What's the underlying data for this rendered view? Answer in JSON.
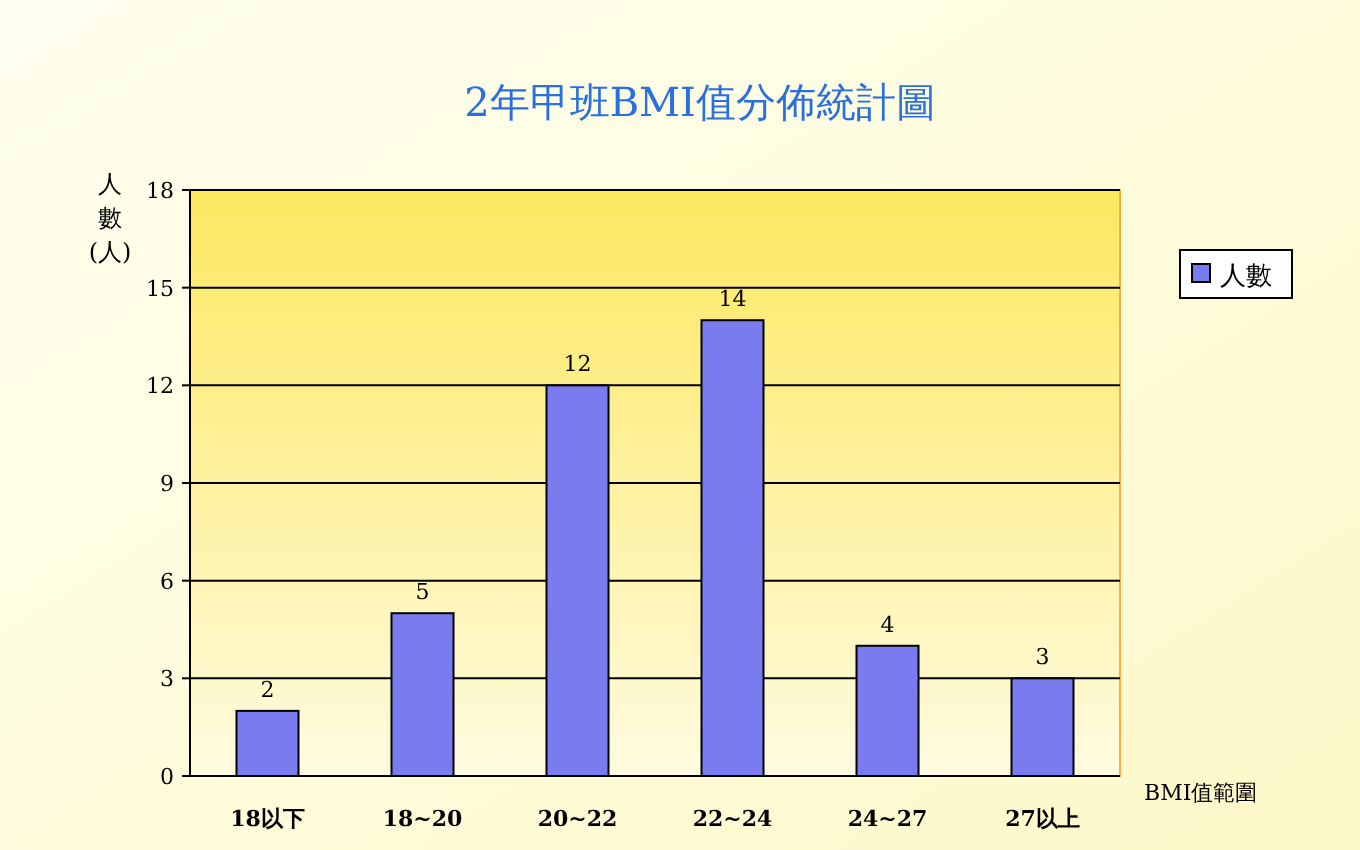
{
  "chart_data": {
    "type": "bar",
    "title": "2年甲班BMI值分佈統計圖",
    "xlabel": "BMI值範圍",
    "ylabel": "人數(人)",
    "categories": [
      "18以下",
      "18~20",
      "20~22",
      "22~24",
      "24~27",
      "27以上"
    ],
    "series": [
      {
        "name": "人數",
        "color": "#7b7bf0",
        "values": [
          2,
          5,
          12,
          14,
          4,
          3
        ]
      }
    ],
    "ylim": [
      0,
      18
    ],
    "yticks": [
      0,
      3,
      6,
      9,
      12,
      15,
      18
    ],
    "grid": "y",
    "legend": "right",
    "data_labels": true
  }
}
